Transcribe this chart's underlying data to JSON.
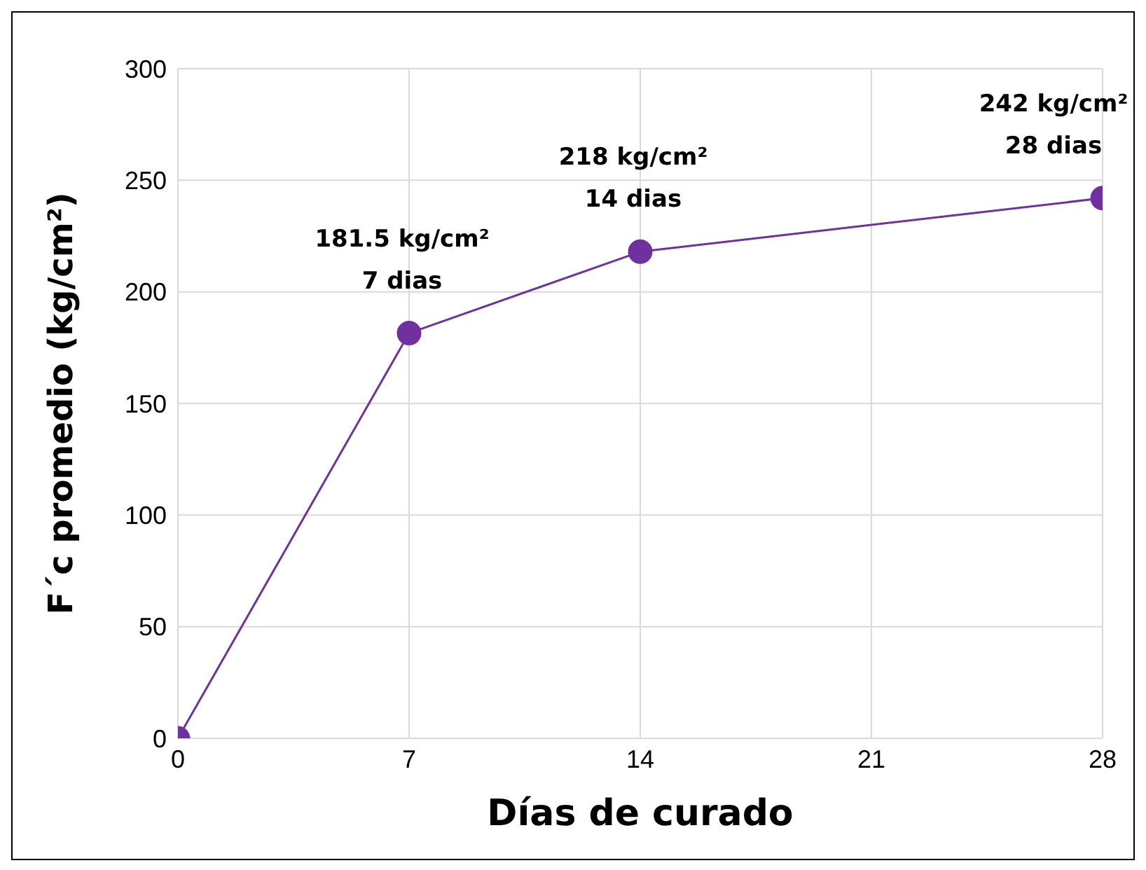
{
  "chart_data": {
    "type": "line",
    "xlabel": "Días de curado",
    "ylabel": "F´c promedio (kg/cm²)",
    "x": [
      0,
      7,
      14,
      28
    ],
    "series": [
      {
        "color": "#7030a0",
        "values": [
          0,
          181.5,
          218,
          242
        ]
      }
    ],
    "xlim": [
      0,
      28
    ],
    "xticks": [
      0,
      7,
      14,
      21,
      28
    ],
    "ylim": [
      0,
      300
    ],
    "yticks": [
      0,
      50,
      100,
      150,
      200,
      250,
      300
    ],
    "grid": true,
    "marker": "circle",
    "line_style": "solid",
    "legend": false,
    "annotations": [
      {
        "text": "181.5 kg/cm²\n7 dias",
        "x": 7,
        "y": 181.5
      },
      {
        "text": "218 kg/cm²\n14 dias",
        "x": 14,
        "y": 218
      },
      {
        "text": "242 kg/cm²\n28 dias",
        "x": 28,
        "y": 242
      }
    ]
  }
}
